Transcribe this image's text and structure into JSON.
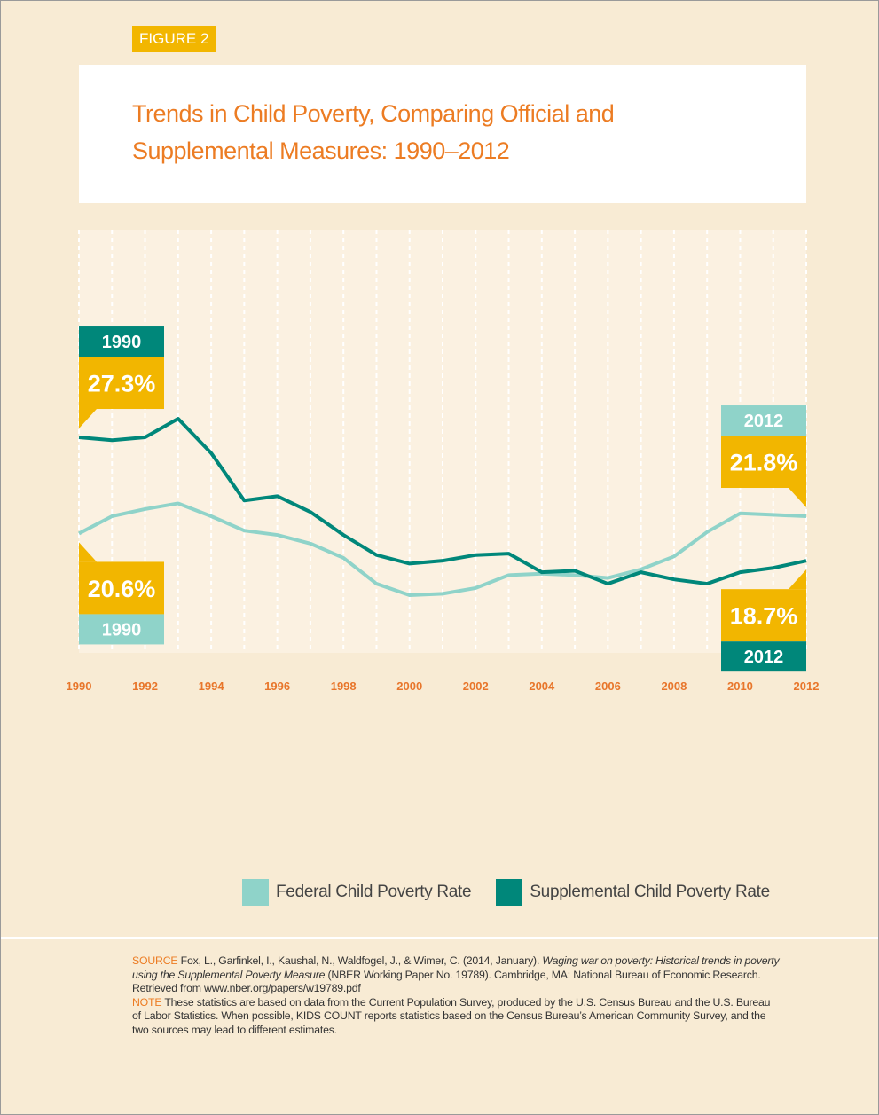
{
  "figure_label": "FIGURE 2",
  "chart_data": {
    "type": "line",
    "title": "Trends in Child Poverty, Comparing Official and Supplemental Measures: 1990–2012",
    "x": [
      1990,
      1991,
      1992,
      1993,
      1994,
      1995,
      1996,
      1997,
      1998,
      1999,
      2000,
      2001,
      2002,
      2003,
      2004,
      2005,
      2006,
      2007,
      2008,
      2009,
      2010,
      2011,
      2012
    ],
    "xlim": [
      1990,
      2012
    ],
    "xticks": [
      1990,
      1992,
      1994,
      1996,
      1998,
      2000,
      2002,
      2004,
      2006,
      2008,
      2010,
      2012
    ],
    "grid": true,
    "series": [
      {
        "name": "Federal Child Poverty Rate",
        "color": "#8fd3c9",
        "values": [
          20.6,
          21.8,
          22.3,
          22.7,
          21.8,
          20.8,
          20.5,
          19.9,
          18.9,
          17.1,
          16.3,
          16.4,
          16.8,
          17.7,
          17.8,
          17.7,
          17.5,
          18.1,
          19.0,
          20.7,
          22.0,
          21.9,
          21.8
        ],
        "value_labels": [
          "20.6%",
          null,
          null,
          null,
          null,
          null,
          null,
          null,
          null,
          null,
          null,
          null,
          null,
          null,
          null,
          null,
          null,
          null,
          null,
          null,
          null,
          null,
          "21.8%"
        ]
      },
      {
        "name": "Supplemental Child Poverty Rate",
        "color": "#00877a",
        "values": [
          27.3,
          27.1,
          27.3,
          28.6,
          26.2,
          22.9,
          23.2,
          22.1,
          20.5,
          19.1,
          18.5,
          18.7,
          19.1,
          19.2,
          17.9,
          18.0,
          17.1,
          17.9,
          17.4,
          17.1,
          17.9,
          18.2,
          18.7
        ],
        "value_labels": [
          "27.3%",
          null,
          null,
          null,
          null,
          null,
          null,
          null,
          null,
          null,
          null,
          null,
          null,
          null,
          null,
          null,
          null,
          null,
          null,
          null,
          null,
          null,
          "18.7%"
        ]
      }
    ]
  },
  "source": {
    "label": "SOURCE",
    "text_before": "Fox, L., Garfinkel, I., Kaushal, N., Waldfogel, J., & Wimer, C. (2014, January). ",
    "text_italic": "Waging war on poverty: Historical trends in poverty using the Supplemental Poverty Measure",
    "text_after": " (NBER Working Paper No. 19789). Cambridge, MA: National Bureau of Economic Research. Retrieved from www.nber.org/papers/w19789.pdf"
  },
  "note": {
    "label": "NOTE",
    "text": "These statistics are based on data from the Current Population Survey, produced by the U.S. Census Bureau and the U.S. Bureau of Labor Statistics. When possible, KIDS COUNT reports statistics based on the Census Bureau’s American Community Survey, and the two sources may lead to different estimates."
  }
}
